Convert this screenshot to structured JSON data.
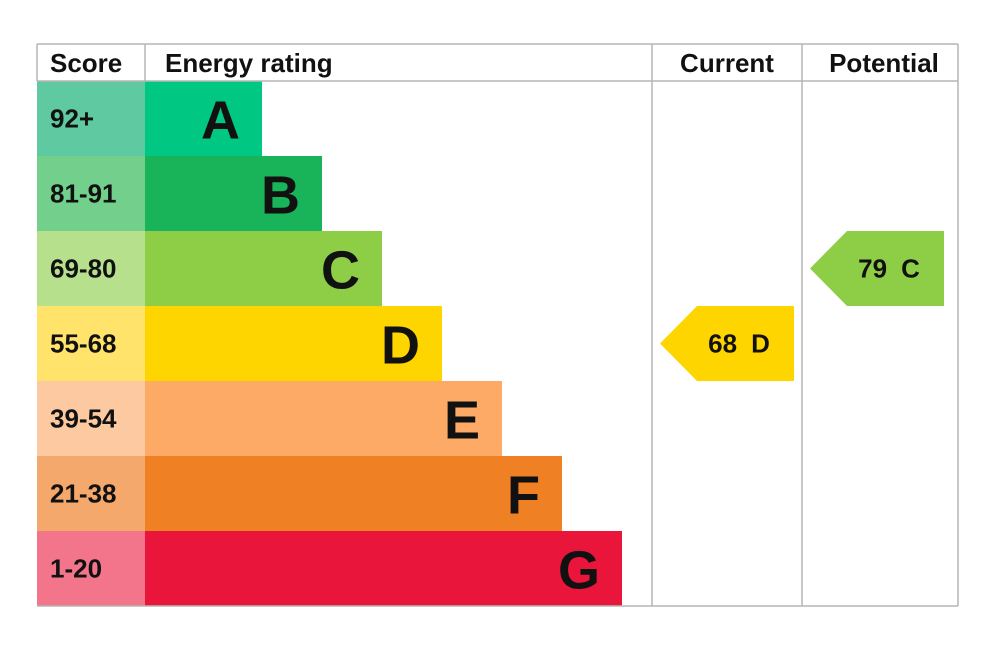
{
  "header": {
    "score": "Score",
    "rating": "Energy rating",
    "current": "Current",
    "potential": "Potential"
  },
  "bands": [
    {
      "score": "92+",
      "letter": "A",
      "color": "#00c781",
      "score_color": "#5fc9a1"
    },
    {
      "score": "81-91",
      "letter": "B",
      "color": "#19b459",
      "score_color": "#72cf8c"
    },
    {
      "score": "69-80",
      "letter": "C",
      "color": "#8dce46",
      "score_color": "#b7e08d"
    },
    {
      "score": "55-68",
      "letter": "D",
      "color": "#ffd500",
      "score_color": "#ffe36b"
    },
    {
      "score": "39-54",
      "letter": "E",
      "color": "#fcaa65",
      "score_color": "#fdc9a1"
    },
    {
      "score": "21-38",
      "letter": "F",
      "color": "#ef8023",
      "score_color": "#f4a86b"
    },
    {
      "score": "1-20",
      "letter": "G",
      "color": "#e9153b",
      "score_color": "#f2758b"
    }
  ],
  "current": {
    "value": 68,
    "letter": "D"
  },
  "potential": {
    "value": 79,
    "letter": "C"
  }
}
